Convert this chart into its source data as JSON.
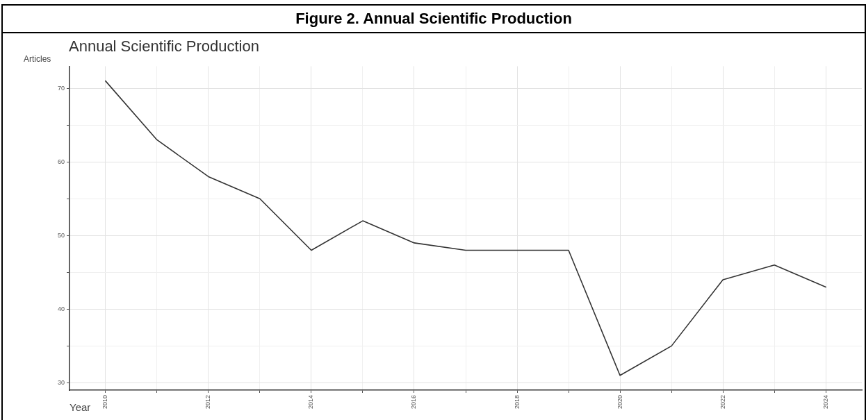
{
  "chart_data": {
    "type": "line",
    "title": "Figure 2. Annual Scientific Production",
    "subtitle": "Annual Scientific Production",
    "xlabel": "Year",
    "ylabel": "Articles",
    "x": [
      2010,
      2011,
      2012,
      2013,
      2014,
      2015,
      2016,
      2017,
      2018,
      2019,
      2020,
      2021,
      2022,
      2023,
      2024
    ],
    "series": [
      {
        "color": "#333333",
        "values": [
          71,
          63,
          58,
          55,
          48,
          52,
          49,
          48,
          48,
          48,
          31,
          35,
          44,
          46,
          43
        ]
      }
    ],
    "xlim": [
      2009.3,
      2024.7
    ],
    "ylim": [
      29,
      73
    ],
    "xticks": [
      2010,
      {
        "value": 2011,
        "label": null
      },
      2012,
      {
        "value": 2013,
        "label": null
      },
      2014,
      {
        "value": 2015,
        "label": null
      },
      2016,
      {
        "value": 2017,
        "label": null
      },
      2018,
      {
        "value": 2019,
        "label": null
      },
      2020,
      {
        "value": 2021,
        "label": null
      },
      2022,
      {
        "value": 2023,
        "label": null
      },
      2024
    ],
    "yticks": [
      30,
      {
        "value": 35,
        "label": null
      },
      40,
      {
        "value": 45,
        "label": null
      },
      50,
      {
        "value": 55,
        "label": null
      },
      60,
      {
        "value": 65,
        "label": null
      },
      70
    ],
    "grid": true,
    "line_style": "solid"
  }
}
